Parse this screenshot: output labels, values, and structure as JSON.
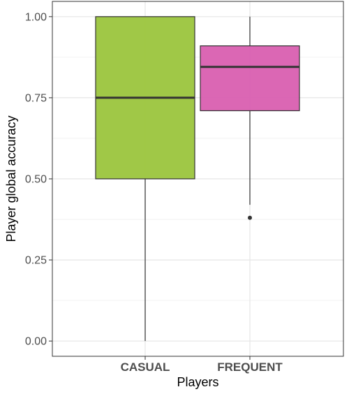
{
  "chart_data": {
    "type": "box",
    "title": "",
    "xlabel": "Players",
    "ylabel": "Player global accuracy",
    "ylim": [
      -0.047,
      1.047
    ],
    "yticks": [
      0.0,
      0.25,
      0.5,
      0.75,
      1.0
    ],
    "ytick_labels": [
      "0.00",
      "0.25",
      "0.50",
      "0.75",
      "1.00"
    ],
    "grid": true,
    "legend": "none",
    "categories": [
      "CASUAL",
      "FREQUENT"
    ],
    "boxes": [
      {
        "category": "CASUAL",
        "min": 0.0,
        "q1": 0.5,
        "median": 0.75,
        "q3": 1.0,
        "max": 1.0,
        "outliers": [],
        "color": "#9bc53d"
      },
      {
        "category": "FREQUENT",
        "min": 0.42,
        "q1": 0.71,
        "median": 0.845,
        "q3": 0.91,
        "max": 1.0,
        "outliers": [
          0.38
        ],
        "color": "#d95fb0"
      }
    ]
  }
}
